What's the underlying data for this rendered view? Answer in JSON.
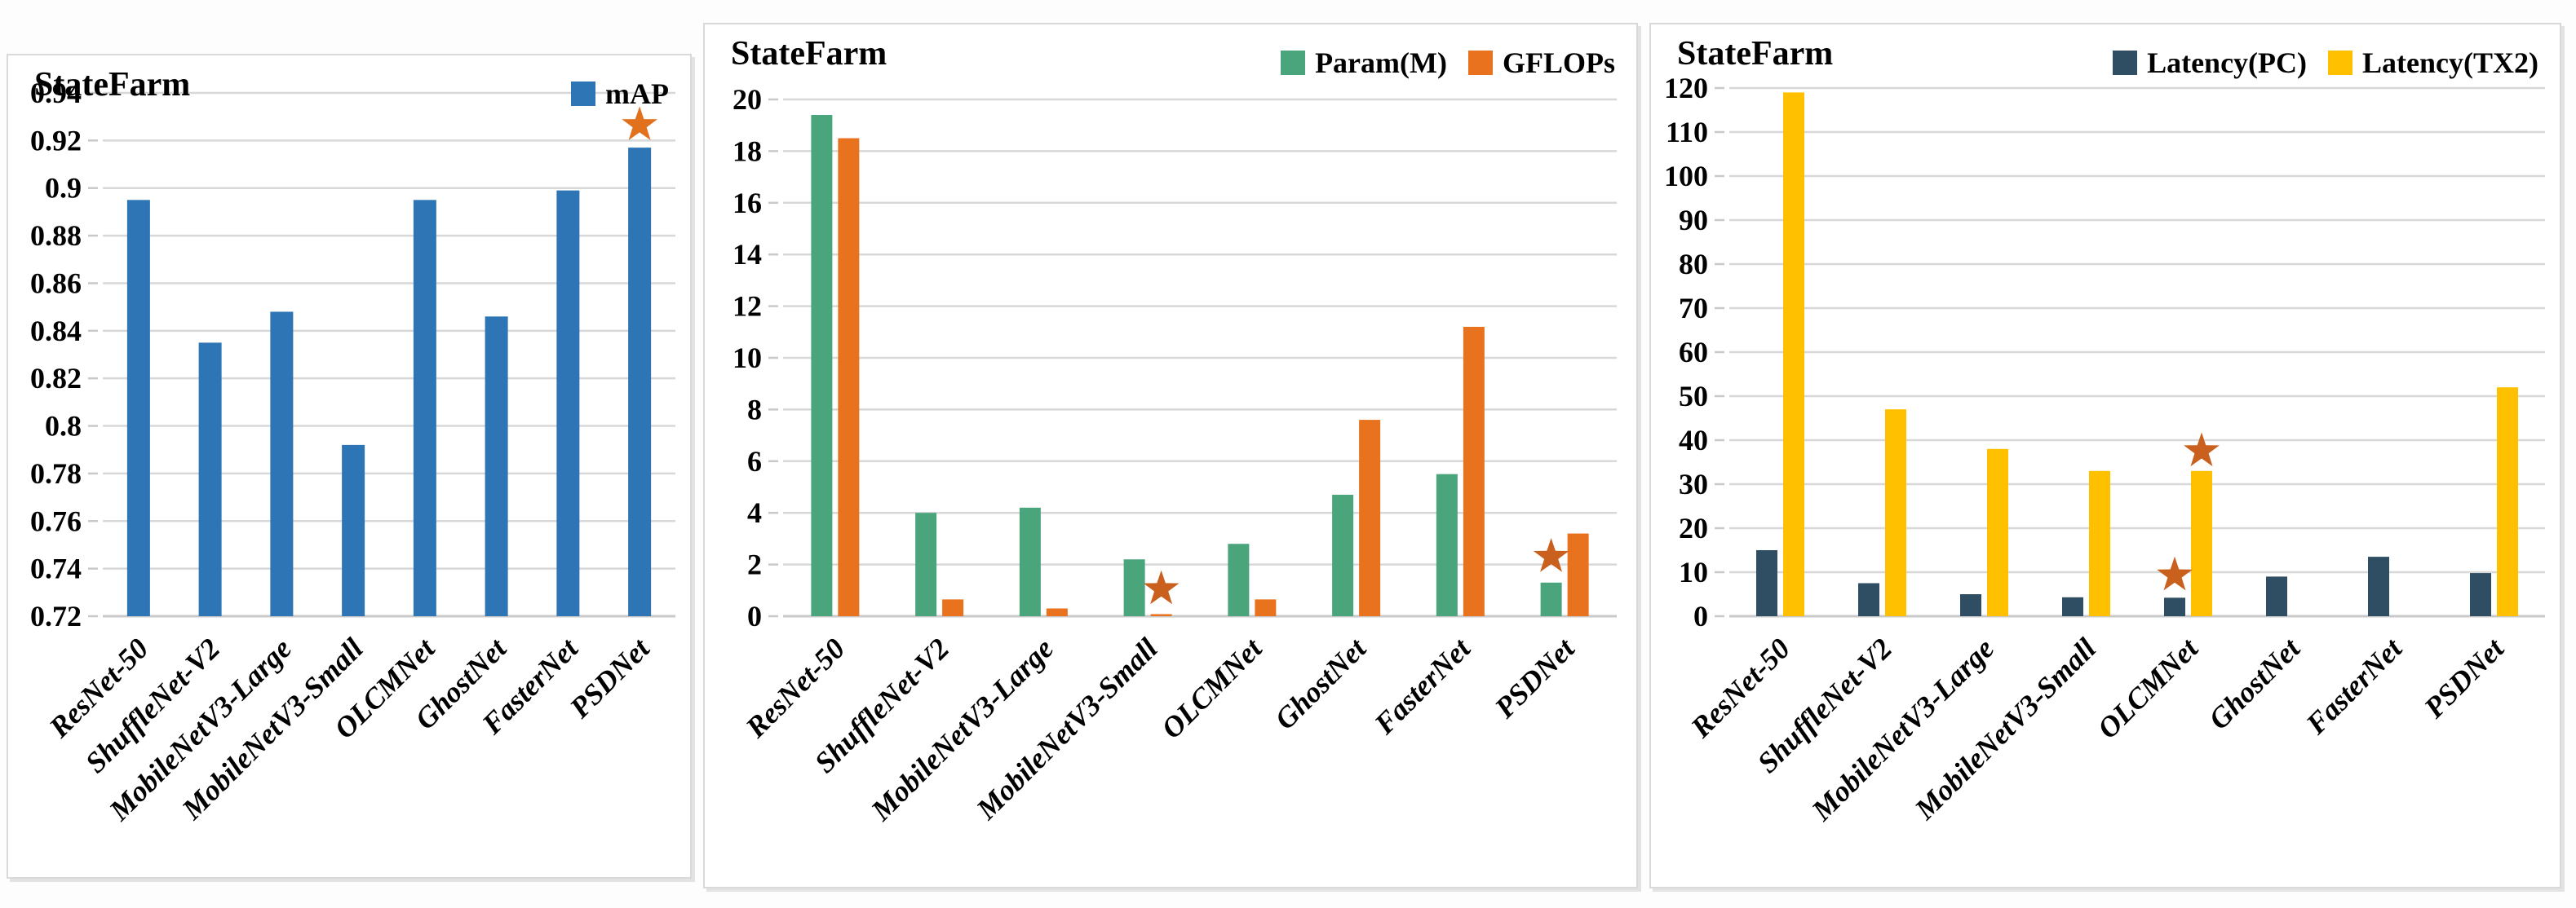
{
  "figure": {
    "description": "Comparison of models on StateFarm dataset: mAP, Param(M)/GFLOPs, Latency(PC)/Latency(TX2)"
  },
  "chart_data": [
    {
      "type": "bar",
      "title": "StateFarm",
      "categories": [
        "ResNet-50",
        "ShuffleNet-V2",
        "MobileNetV3-Large",
        "MobileNetV3-Small",
        "OLCMNet",
        "GhostNet",
        "FasterNet",
        "PSDNet"
      ],
      "series": [
        {
          "name": "mAP",
          "color": "#2E75B6",
          "values": [
            0.895,
            0.835,
            0.848,
            0.792,
            0.895,
            0.846,
            0.899,
            0.917
          ]
        }
      ],
      "ylim": [
        0.72,
        0.94
      ],
      "ytick_step": 0.02,
      "ytick_labels": [
        "0.94",
        "0.92",
        "0.9",
        "0.88",
        "0.86",
        "0.84",
        "0.82",
        "0.8",
        "0.78",
        "0.76",
        "0.74",
        "0.72"
      ],
      "grid": true,
      "legend_position": "top-right",
      "stars": [
        {
          "category": "PSDNet",
          "series": "mAP",
          "value": 0.9265,
          "color": "#E2711E"
        }
      ]
    },
    {
      "type": "bar",
      "title": "StateFarm",
      "categories": [
        "ResNet-50",
        "ShuffleNet-V2",
        "MobileNetV3-Large",
        "MobileNetV3-Small",
        "OLCMNet",
        "GhostNet",
        "FasterNet",
        "PSDNet"
      ],
      "series": [
        {
          "name": "Param(M)",
          "color": "#4AA57D",
          "values": [
            19.4,
            4.0,
            4.2,
            2.2,
            2.8,
            4.7,
            5.5,
            1.3
          ]
        },
        {
          "name": "GFLOPs",
          "color": "#E8721E",
          "values": [
            18.5,
            0.65,
            0.3,
            0.08,
            0.65,
            7.6,
            11.2,
            3.2
          ]
        }
      ],
      "ylim": [
        0,
        20
      ],
      "ytick_step": 2,
      "ytick_labels": [
        "20",
        "18",
        "16",
        "14",
        "12",
        "10",
        "8",
        "6",
        "4",
        "2",
        "0"
      ],
      "grid": true,
      "legend_position": "top-right",
      "stars": [
        {
          "category": "MobileNetV3-Small",
          "series": "GFLOPs",
          "value": 1.05,
          "color": "#C9601E"
        },
        {
          "category": "PSDNet",
          "series": "Param(M)",
          "value": 2.3,
          "color": "#C9601E"
        }
      ]
    },
    {
      "type": "bar",
      "title": "StateFarm",
      "categories": [
        "ResNet-50",
        "ShuffleNet-V2",
        "MobileNetV3-Large",
        "MobileNetV3-Small",
        "OLCMNet",
        "GhostNet",
        "FasterNet",
        "PSDNet"
      ],
      "series": [
        {
          "name": "Latency(PC)",
          "color": "#2F4E63",
          "values": [
            15,
            7.5,
            5.0,
            4.3,
            4.2,
            9.0,
            13.5,
            9.8
          ]
        },
        {
          "name": "Latency(TX2)",
          "color": "#FFC000",
          "values": [
            119,
            47,
            38,
            33,
            33,
            0,
            0,
            52
          ]
        }
      ],
      "ylim": [
        0,
        120
      ],
      "ytick_step": 10,
      "ytick_labels": [
        "120",
        "110",
        "100",
        "90",
        "80",
        "70",
        "60",
        "50",
        "40",
        "30",
        "20",
        "10",
        "0"
      ],
      "grid": true,
      "legend_position": "top-right",
      "stars": [
        {
          "category": "OLCMNet",
          "series": "Latency(PC)",
          "value": 9.3,
          "color": "#C9601E"
        },
        {
          "category": "OLCMNet",
          "series": "Latency(TX2)",
          "value": 37.5,
          "color": "#C9601E"
        }
      ]
    }
  ]
}
